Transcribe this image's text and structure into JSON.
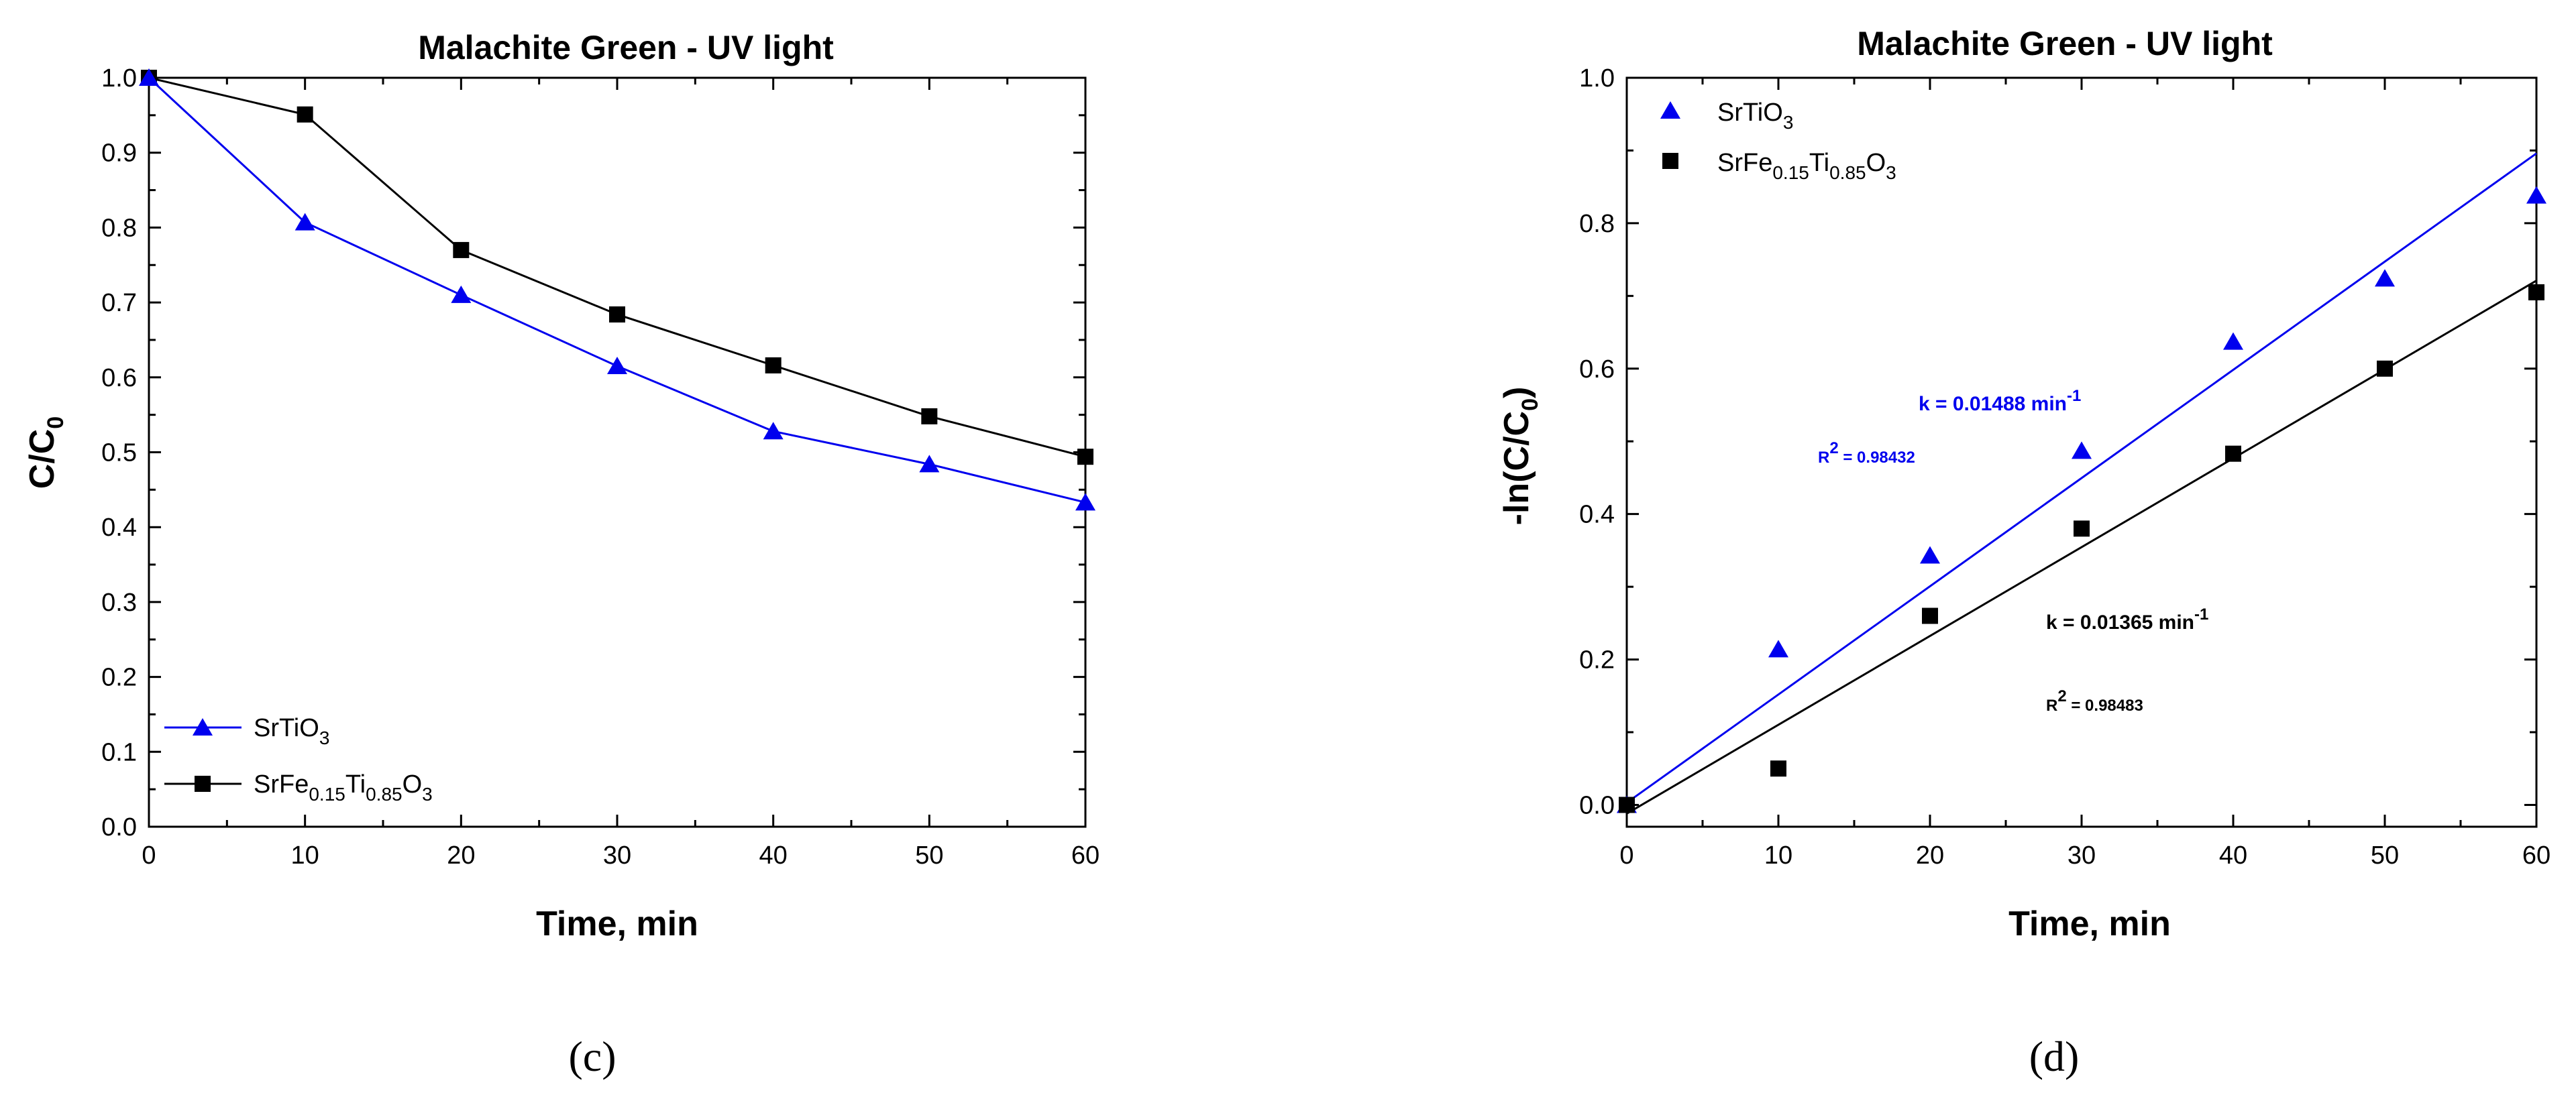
{
  "colors": {
    "blue": "#0000ee",
    "black": "#000000"
  },
  "chart_data": [
    {
      "type": "line",
      "panel_label": "(c)",
      "title": "Malachite Green - UV light",
      "xlabel": "Time, min",
      "ylabel": {
        "main": "C/C",
        "sub": "0"
      },
      "xlim": [
        0,
        60
      ],
      "ylim": [
        0,
        1.0
      ],
      "xticks": [
        "0",
        "10",
        "20",
        "30",
        "40",
        "50",
        "60"
      ],
      "yticks": [
        "0.0",
        "0.1",
        "0.2",
        "0.3",
        "0.4",
        "0.5",
        "0.6",
        "0.7",
        "0.8",
        "0.9",
        "1.0"
      ],
      "legend_position": "bottom-left",
      "series": [
        {
          "name": "SrTiO3",
          "name_parts": [
            [
              "SrTiO",
              ""
            ],
            [
              "3",
              "sub"
            ]
          ],
          "marker": "triangle",
          "color": "#0000ee",
          "x": [
            0,
            10,
            20,
            30,
            40,
            50,
            60
          ],
          "values": [
            1.0,
            0.807,
            0.71,
            0.615,
            0.528,
            0.484,
            0.433
          ]
        },
        {
          "name": "SrFe0.15Ti0.85O3",
          "name_parts": [
            [
              "SrFe",
              ""
            ],
            [
              "0.15",
              "sub"
            ],
            [
              "Ti",
              ""
            ],
            [
              "0.85",
              "sub"
            ],
            [
              "O",
              ""
            ],
            [
              "3",
              "sub"
            ]
          ],
          "marker": "square",
          "color": "#000000",
          "x": [
            0,
            10,
            20,
            30,
            40,
            50,
            60
          ],
          "values": [
            1.0,
            0.951,
            0.77,
            0.684,
            0.616,
            0.548,
            0.494
          ]
        }
      ]
    },
    {
      "type": "scatter",
      "panel_label": "(d)",
      "title": "Malachite Green - UV light",
      "xlabel": "Time, min",
      "ylabel": {
        "main": "-ln(C/C",
        "sub": "0",
        "end": ")"
      },
      "xlim": [
        0,
        60
      ],
      "ylim": [
        -0.03,
        1.0
      ],
      "xticks": [
        "0",
        "10",
        "20",
        "30",
        "40",
        "50",
        "60"
      ],
      "yticks": [
        "0.0",
        "0.2",
        "0.4",
        "0.6",
        "0.8",
        "1.0"
      ],
      "legend_position": "top-left",
      "series": [
        {
          "name": "SrTiO3",
          "name_parts": [
            [
              "SrTiO",
              ""
            ],
            [
              "3",
              "sub"
            ]
          ],
          "marker": "triangle",
          "color": "#0000ee",
          "x": [
            0,
            10,
            20,
            30,
            40,
            50,
            60
          ],
          "values": [
            0.0,
            0.214,
            0.343,
            0.487,
            0.637,
            0.724,
            0.838
          ],
          "fit": {
            "x": [
              0,
              60
            ],
            "y": [
              0.003,
              0.896
            ]
          },
          "annotation": {
            "k_text": "k = 0.01488 min",
            "k_exp": "-1",
            "r2_label": "R",
            "r2_exp": "2",
            "r2_text": " = 0.98432"
          }
        },
        {
          "name": "SrFe0.15Ti0.85O3",
          "name_parts": [
            [
              "SrFe",
              ""
            ],
            [
              "0.15",
              "sub"
            ],
            [
              "Ti",
              ""
            ],
            [
              "0.85",
              "sub"
            ],
            [
              "O",
              ""
            ],
            [
              "3",
              "sub"
            ]
          ],
          "marker": "square",
          "color": "#000000",
          "x": [
            0,
            10,
            20,
            30,
            40,
            50,
            60
          ],
          "values": [
            0.0,
            0.05,
            0.26,
            0.38,
            0.483,
            0.6,
            0.705
          ],
          "fit": {
            "x": [
              0,
              60
            ],
            "y": [
              -0.012,
              0.721
            ]
          },
          "annotation": {
            "k_text": "k = 0.01365 min",
            "k_exp": "-1",
            "r2_label": "R",
            "r2_exp": "2",
            "r2_text": " = 0.98483"
          }
        }
      ]
    }
  ]
}
